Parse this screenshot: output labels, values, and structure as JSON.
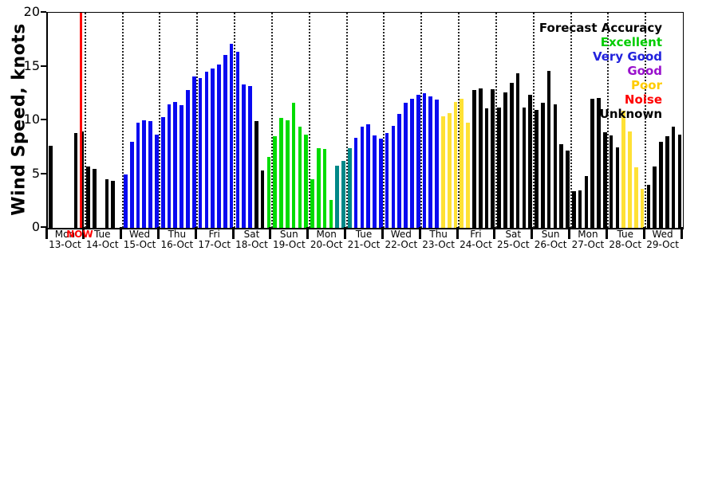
{
  "chart_data": {
    "type": "bar",
    "title": "",
    "ylabel": "Wind Speed, knots",
    "ylim": [
      0,
      20
    ],
    "yticks": [
      0,
      5,
      10,
      15,
      20
    ],
    "grid": "dotted vertical lines at each day boundary",
    "legend_position": "top-right inside plot",
    "bars_per_day": 6,
    "x_days": [
      {
        "weekday": "Mon",
        "date": "13-Oct"
      },
      {
        "weekday": "Tue",
        "date": "14-Oct"
      },
      {
        "weekday": "Wed",
        "date": "15-Oct"
      },
      {
        "weekday": "Thu",
        "date": "16-Oct"
      },
      {
        "weekday": "Fri",
        "date": "17-Oct"
      },
      {
        "weekday": "Sat",
        "date": "18-Oct"
      },
      {
        "weekday": "Sun",
        "date": "19-Oct"
      },
      {
        "weekday": "Mon",
        "date": "20-Oct"
      },
      {
        "weekday": "Tue",
        "date": "21-Oct"
      },
      {
        "weekday": "Wed",
        "date": "22-Oct"
      },
      {
        "weekday": "Thu",
        "date": "23-Oct"
      },
      {
        "weekday": "Fri",
        "date": "24-Oct"
      },
      {
        "weekday": "Sat",
        "date": "25-Oct"
      },
      {
        "weekday": "Sun",
        "date": "26-Oct"
      },
      {
        "weekday": "Mon",
        "date": "27-Oct"
      },
      {
        "weekday": "Tue",
        "date": "28-Oct"
      },
      {
        "weekday": "Wed",
        "date": "29-Oct"
      }
    ],
    "now_marker": {
      "label": "NOW",
      "day_index": 0,
      "day_fraction": 0.88,
      "color": "#ff0000"
    },
    "accuracy_codes": {
      "k": "unknown",
      "b": "very_good",
      "g": "excellent",
      "t": "transition",
      "p": "poor"
    },
    "color_map": {
      "k": "#000000",
      "b": "#0909f0",
      "g": "#00dc00",
      "t": "#008888",
      "p": "#ffe135"
    },
    "bars": [
      [
        7.6,
        "k"
      ],
      [
        0,
        "k"
      ],
      [
        0,
        "k"
      ],
      [
        0,
        "k"
      ],
      [
        8.8,
        "k"
      ],
      [
        9.0,
        "k"
      ],
      [
        5.7,
        "k"
      ],
      [
        5.5,
        "k"
      ],
      [
        0,
        "k"
      ],
      [
        4.5,
        "k"
      ],
      [
        4.4,
        "k"
      ],
      [
        0,
        "k"
      ],
      [
        5.0,
        "b"
      ],
      [
        8.0,
        "b"
      ],
      [
        9.8,
        "b"
      ],
      [
        10.0,
        "b"
      ],
      [
        9.9,
        "b"
      ],
      [
        8.7,
        "b"
      ],
      [
        10.3,
        "b"
      ],
      [
        11.5,
        "b"
      ],
      [
        11.7,
        "b"
      ],
      [
        11.4,
        "b"
      ],
      [
        12.8,
        "b"
      ],
      [
        14.1,
        "b"
      ],
      [
        13.9,
        "b"
      ],
      [
        14.5,
        "b"
      ],
      [
        14.8,
        "b"
      ],
      [
        15.2,
        "b"
      ],
      [
        16.1,
        "b"
      ],
      [
        17.1,
        "b"
      ],
      [
        16.4,
        "b"
      ],
      [
        13.3,
        "b"
      ],
      [
        13.2,
        "b"
      ],
      [
        9.9,
        "k"
      ],
      [
        5.3,
        "k"
      ],
      [
        6.6,
        "g"
      ],
      [
        8.5,
        "g"
      ],
      [
        10.2,
        "g"
      ],
      [
        10.0,
        "g"
      ],
      [
        11.6,
        "g"
      ],
      [
        9.4,
        "g"
      ],
      [
        8.7,
        "g"
      ],
      [
        4.5,
        "g"
      ],
      [
        7.4,
        "g"
      ],
      [
        7.3,
        "g"
      ],
      [
        2.6,
        "g"
      ],
      [
        5.8,
        "t"
      ],
      [
        6.2,
        "t"
      ],
      [
        7.4,
        "t"
      ],
      [
        8.4,
        "b"
      ],
      [
        9.4,
        "b"
      ],
      [
        9.6,
        "b"
      ],
      [
        8.6,
        "b"
      ],
      [
        8.3,
        "b"
      ],
      [
        8.8,
        "b"
      ],
      [
        9.5,
        "b"
      ],
      [
        10.6,
        "b"
      ],
      [
        11.6,
        "b"
      ],
      [
        12.0,
        "b"
      ],
      [
        12.4,
        "b"
      ],
      [
        12.5,
        "b"
      ],
      [
        12.2,
        "b"
      ],
      [
        11.9,
        "b"
      ],
      [
        10.4,
        "p"
      ],
      [
        10.7,
        "p"
      ],
      [
        11.7,
        "p"
      ],
      [
        12.0,
        "p"
      ],
      [
        9.8,
        "p"
      ],
      [
        12.8,
        "k"
      ],
      [
        13.0,
        "k"
      ],
      [
        11.1,
        "k"
      ],
      [
        12.9,
        "k"
      ],
      [
        11.2,
        "k"
      ],
      [
        12.6,
        "k"
      ],
      [
        13.5,
        "k"
      ],
      [
        14.4,
        "k"
      ],
      [
        11.2,
        "k"
      ],
      [
        12.4,
        "k"
      ],
      [
        11.0,
        "k"
      ],
      [
        11.6,
        "k"
      ],
      [
        14.6,
        "k"
      ],
      [
        11.5,
        "k"
      ],
      [
        7.8,
        "k"
      ],
      [
        7.2,
        "k"
      ],
      [
        3.4,
        "k"
      ],
      [
        3.5,
        "k"
      ],
      [
        4.8,
        "k"
      ],
      [
        12.0,
        "k"
      ],
      [
        12.1,
        "k"
      ],
      [
        8.9,
        "k"
      ],
      [
        8.6,
        "k"
      ],
      [
        7.5,
        "k"
      ],
      [
        10.9,
        "p"
      ],
      [
        9.0,
        "p"
      ],
      [
        5.6,
        "p"
      ],
      [
        3.6,
        "p"
      ],
      [
        4.0,
        "k"
      ],
      [
        5.7,
        "k"
      ],
      [
        8.0,
        "k"
      ],
      [
        8.5,
        "k"
      ],
      [
        9.4,
        "k"
      ],
      [
        8.7,
        "k"
      ]
    ],
    "legend": {
      "title": "Forecast Accuracy",
      "items": [
        {
          "label": "Excellent",
          "color": "#00cc00"
        },
        {
          "label": "Very Good",
          "color": "#2222dd"
        },
        {
          "label": "Good",
          "color": "#9911cc"
        },
        {
          "label": "Poor",
          "color": "#ffcc00"
        },
        {
          "label": "Noise",
          "color": "#ff0000"
        },
        {
          "label": "Unknown",
          "color": "#000000"
        }
      ]
    }
  }
}
